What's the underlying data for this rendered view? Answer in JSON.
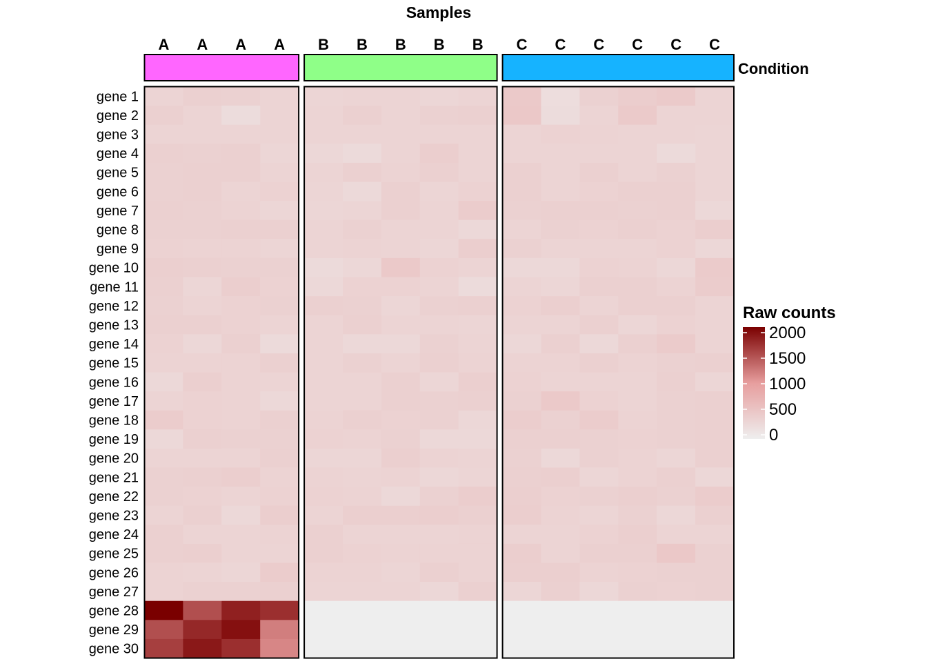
{
  "chart_data": {
    "type": "heatmap",
    "title": "Samples",
    "annotation_label": "Condition",
    "legend_title": "Raw counts",
    "legend_ticks": [
      0,
      500,
      1000,
      1500,
      2000
    ],
    "color_scale": {
      "min": 0,
      "max": 2000,
      "colors": [
        "#EEEEEE",
        "#E79E9E",
        "#7A0000"
      ]
    },
    "groups": [
      {
        "name": "A",
        "color": "#FF66FF",
        "columns": [
          "A",
          "A",
          "A",
          "A"
        ]
      },
      {
        "name": "B",
        "color": "#8FFF88",
        "columns": [
          "B",
          "B",
          "B",
          "B",
          "B"
        ]
      },
      {
        "name": "C",
        "color": "#16B3FF",
        "columns": [
          "C",
          "C",
          "C",
          "C",
          "C",
          "C"
        ]
      }
    ],
    "rows": [
      "gene 1",
      "gene 2",
      "gene 3",
      "gene 4",
      "gene 5",
      "gene 6",
      "gene 7",
      "gene 8",
      "gene 9",
      "gene 10",
      "gene 11",
      "gene 12",
      "gene 13",
      "gene 14",
      "gene 15",
      "gene 16",
      "gene 17",
      "gene 18",
      "gene 19",
      "gene 20",
      "gene 21",
      "gene 22",
      "gene 23",
      "gene 24",
      "gene 25",
      "gene 26",
      "gene 27",
      "gene 28",
      "gene 29",
      "gene 30"
    ],
    "values": [
      [
        330,
        380,
        360,
        330,
        310,
        320,
        330,
        300,
        320,
        460,
        210,
        360,
        410,
        450,
        330
      ],
      [
        380,
        320,
        220,
        330,
        330,
        380,
        320,
        360,
        370,
        480,
        230,
        330,
        450,
        320,
        320
      ],
      [
        330,
        320,
        330,
        320,
        330,
        330,
        320,
        330,
        330,
        320,
        350,
        340,
        330,
        320,
        310
      ],
      [
        380,
        360,
        380,
        300,
        290,
        250,
        330,
        400,
        320,
        330,
        320,
        320,
        330,
        250,
        310
      ],
      [
        360,
        380,
        370,
        320,
        320,
        370,
        340,
        370,
        330,
        370,
        330,
        380,
        330,
        360,
        310
      ],
      [
        360,
        370,
        330,
        350,
        310,
        260,
        370,
        310,
        350,
        370,
        330,
        350,
        370,
        370,
        310
      ],
      [
        370,
        360,
        340,
        300,
        300,
        310,
        380,
        320,
        420,
        360,
        380,
        370,
        360,
        370,
        280
      ],
      [
        360,
        360,
        380,
        380,
        330,
        360,
        320,
        330,
        280,
        320,
        360,
        350,
        380,
        350,
        400
      ],
      [
        350,
        340,
        340,
        310,
        330,
        340,
        320,
        300,
        400,
        360,
        320,
        330,
        320,
        350,
        290
      ],
      [
        390,
        370,
        360,
        360,
        250,
        290,
        460,
        350,
        330,
        280,
        280,
        350,
        340,
        290,
        440
      ],
      [
        380,
        300,
        400,
        350,
        270,
        350,
        350,
        330,
        240,
        330,
        300,
        380,
        370,
        340,
        420
      ],
      [
        360,
        330,
        350,
        360,
        380,
        360,
        300,
        360,
        380,
        350,
        390,
        320,
        380,
        380,
        330
      ],
      [
        370,
        370,
        350,
        320,
        330,
        370,
        330,
        330,
        310,
        330,
        320,
        380,
        300,
        350,
        330
      ],
      [
        350,
        290,
        370,
        250,
        330,
        270,
        270,
        360,
        330,
        290,
        370,
        270,
        370,
        440,
        330
      ],
      [
        340,
        340,
        340,
        370,
        330,
        360,
        330,
        370,
        340,
        340,
        340,
        370,
        340,
        360,
        380
      ],
      [
        270,
        390,
        340,
        330,
        330,
        320,
        380,
        300,
        390,
        350,
        330,
        330,
        330,
        380,
        300
      ],
      [
        330,
        350,
        340,
        270,
        330,
        330,
        370,
        360,
        380,
        360,
        460,
        350,
        330,
        360,
        380
      ],
      [
        430,
        350,
        340,
        370,
        340,
        370,
        350,
        360,
        290,
        410,
        360,
        420,
        340,
        360,
        370
      ],
      [
        280,
        370,
        360,
        360,
        350,
        340,
        360,
        280,
        270,
        380,
        370,
        360,
        350,
        360,
        370
      ],
      [
        330,
        330,
        320,
        380,
        300,
        300,
        390,
        340,
        330,
        360,
        270,
        360,
        340,
        300,
        380
      ],
      [
        360,
        380,
        400,
        340,
        340,
        330,
        340,
        290,
        310,
        380,
        390,
        300,
        340,
        370,
        290
      ],
      [
        360,
        350,
        330,
        350,
        350,
        340,
        280,
        360,
        410,
        390,
        350,
        360,
        390,
        360,
        420
      ],
      [
        320,
        370,
        280,
        400,
        330,
        390,
        390,
        400,
        370,
        400,
        340,
        310,
        360,
        290,
        370
      ],
      [
        380,
        330,
        330,
        340,
        370,
        320,
        330,
        330,
        340,
        330,
        330,
        350,
        390,
        320,
        330
      ],
      [
        380,
        390,
        330,
        320,
        370,
        350,
        340,
        340,
        340,
        400,
        330,
        370,
        380,
        480,
        360
      ],
      [
        340,
        330,
        300,
        430,
        340,
        340,
        310,
        370,
        340,
        390,
        390,
        340,
        350,
        360,
        360
      ],
      [
        340,
        360,
        360,
        370,
        330,
        330,
        320,
        290,
        370,
        300,
        380,
        290,
        360,
        350,
        360
      ],
      [
        2000,
        1500,
        1800,
        1700,
        0,
        0,
        0,
        0,
        0,
        0,
        0,
        0,
        0,
        0,
        0
      ],
      [
        1500,
        1750,
        1900,
        1200,
        0,
        0,
        0,
        0,
        0,
        0,
        0,
        0,
        0,
        0,
        0
      ],
      [
        1600,
        1850,
        1700,
        1150,
        0,
        0,
        0,
        0,
        0,
        0,
        0,
        0,
        0,
        0,
        0
      ]
    ]
  }
}
